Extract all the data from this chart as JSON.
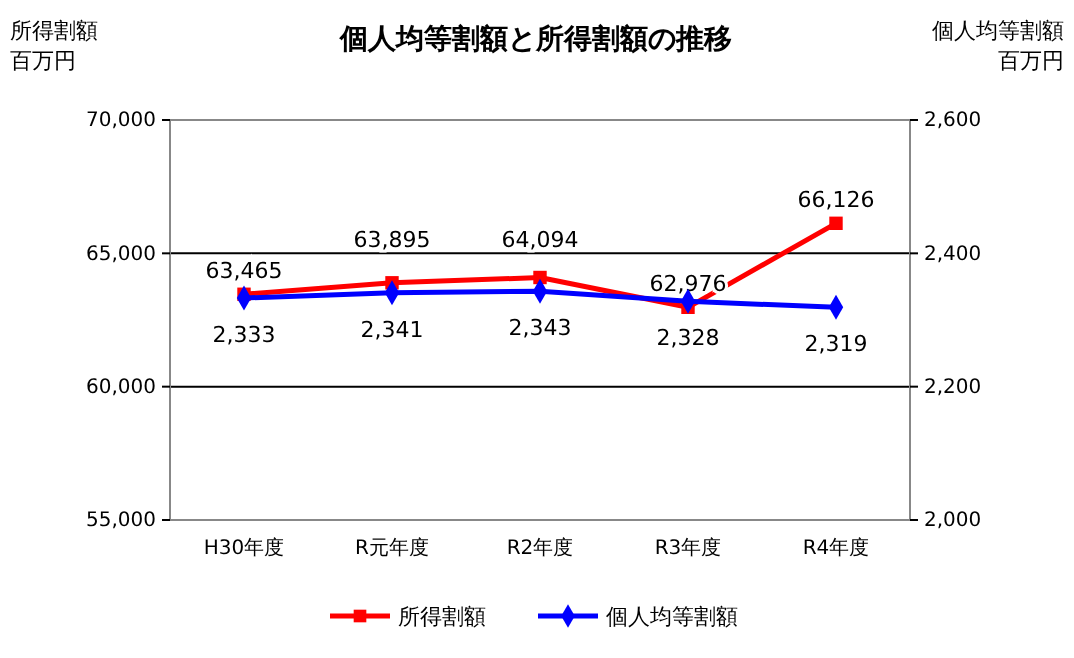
{
  "chart_data": {
    "type": "line",
    "title": "個人均等割額と所得割額の推移",
    "ylabel": "所得割額百万円",
    "y2label": "個人均等割額百万円",
    "categories": [
      "H30年度",
      "R元年度",
      "R2年度",
      "R3年度",
      "R4年度"
    ],
    "series": [
      {
        "name": "所得割額",
        "color": "#ff0000",
        "marker": "square",
        "values": [
          63465,
          63895,
          64094,
          62976,
          66126
        ],
        "value_labels": [
          "63,465",
          "63,895",
          "64,094",
          "62,976",
          "66,126"
        ]
      },
      {
        "name": "個人均等割額",
        "color": "#0000ff",
        "marker": "diamond",
        "axis": "y2",
        "values": [
          2333,
          2341,
          2343,
          2328,
          2319
        ],
        "value_labels": [
          "2,333",
          "2,341",
          "2,343",
          "2,328",
          "2,319"
        ]
      }
    ],
    "ylim": [
      55000,
      70000
    ],
    "yticks": [
      {
        "value": 55000,
        "label": "55,000"
      },
      {
        "value": 60000,
        "label": "60,000"
      },
      {
        "value": 65000,
        "label": "65,000"
      },
      {
        "value": 70000,
        "label": "70,000"
      }
    ],
    "y2lim": [
      2000,
      2600
    ],
    "y2ticks": [
      {
        "value": 2000,
        "label": "2,000"
      },
      {
        "value": 2200,
        "label": "2,200"
      },
      {
        "value": 2400,
        "label": "2,400"
      },
      {
        "value": 2600,
        "label": "2,600"
      }
    ],
    "grid": "y",
    "legend": "bottom",
    "line_style": "solid"
  }
}
